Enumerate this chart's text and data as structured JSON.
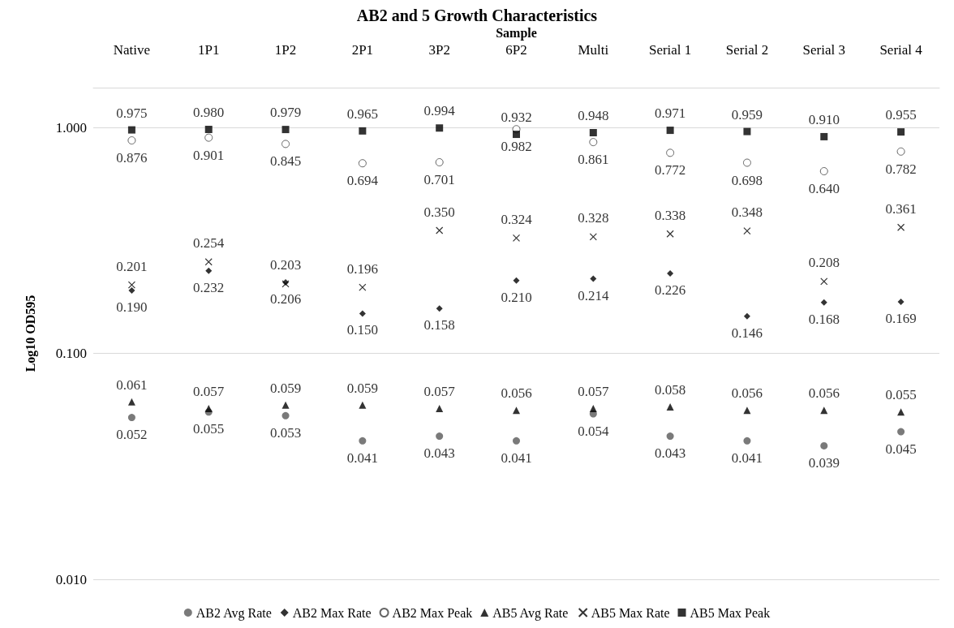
{
  "chart_data": {
    "type": "scatter",
    "title": "AB2 and 5 Growth Characteristics",
    "xlabel": "Sample",
    "ylabel": "Log10 OD595",
    "categories": [
      "Native",
      "1P1",
      "1P2",
      "2P1",
      "3P2",
      "6P2",
      "Multi",
      "Serial 1",
      "Serial 2",
      "Serial 3",
      "Serial 4"
    ],
    "series": [
      {
        "name": "AB2 Avg Rate",
        "color": "#595959",
        "marker": "circle",
        "values": [
          0.052,
          0.055,
          0.053,
          0.041,
          0.043,
          0.041,
          0.054,
          0.043,
          0.041,
          0.039,
          0.045
        ],
        "value_labels": [
          "0.052",
          "0.055",
          "0.053",
          "0.041",
          "0.043",
          "0.041",
          "0.054",
          "0.043",
          "0.041",
          "0.039",
          "0.045"
        ]
      },
      {
        "name": "AB2 Max Rate",
        "color": "#000000",
        "marker": "diamond",
        "values": [
          0.19,
          0.232,
          0.206,
          0.15,
          0.158,
          0.21,
          0.214,
          0.226,
          0.146,
          0.168,
          0.169
        ],
        "value_labels": [
          "0.190",
          "0.232",
          "0.206",
          "0.150",
          "0.158",
          "0.210",
          "0.214",
          "0.226",
          "0.146",
          "0.168",
          "0.169"
        ]
      },
      {
        "name": "AB2 Max Peak",
        "color": "#ffffff",
        "marker": "circle",
        "values": [
          0.876,
          0.901,
          0.845,
          0.694,
          0.701,
          0.982,
          0.861,
          0.772,
          0.698,
          0.64,
          0.782
        ],
        "value_labels": [
          "0.876",
          "0.901",
          "0.845",
          "0.694",
          "0.701",
          "0.982",
          "0.861",
          "0.772",
          "0.698",
          "0.640",
          "0.782"
        ]
      },
      {
        "name": "AB5 Avg Rate",
        "color": "#000000",
        "marker": "triangle",
        "values": [
          0.061,
          0.057,
          0.059,
          0.059,
          0.057,
          0.056,
          0.057,
          0.058,
          0.056,
          0.056,
          0.055
        ],
        "value_labels": [
          "0.061",
          "0.057",
          "0.059",
          "0.059",
          "0.057",
          "0.056",
          "0.057",
          "0.058",
          "0.056",
          "0.056",
          "0.055"
        ]
      },
      {
        "name": "AB5 Max Rate",
        "color": "#000000",
        "marker": "cross",
        "values": [
          0.201,
          0.254,
          0.203,
          0.196,
          0.35,
          0.324,
          0.328,
          0.338,
          0.348,
          0.208,
          0.361
        ],
        "value_labels": [
          "0.201",
          "0.254",
          "0.203",
          "0.196",
          "0.350",
          "0.324",
          "0.328",
          "0.338",
          "0.348",
          "0.208",
          "0.361"
        ]
      },
      {
        "name": "AB5 Max Peak",
        "color": "#000000",
        "marker": "square",
        "values": [
          0.975,
          0.98,
          0.979,
          0.965,
          0.994,
          0.932,
          0.948,
          0.971,
          0.959,
          0.91,
          0.955
        ],
        "value_labels": [
          "0.975",
          "0.980",
          "0.979",
          "0.965",
          "0.994",
          "0.932",
          "0.948",
          "0.971",
          "0.959",
          "0.910",
          "0.955"
        ]
      }
    ],
    "log": "y",
    "ylim": [
      0.01,
      1.5
    ],
    "yticks": [
      {
        "value": 0.01,
        "label": "0.010"
      },
      {
        "value": 0.1,
        "label": "0.100"
      },
      {
        "value": 1,
        "label": "1.000"
      }
    ],
    "grid": "y",
    "legend": "bottom"
  }
}
